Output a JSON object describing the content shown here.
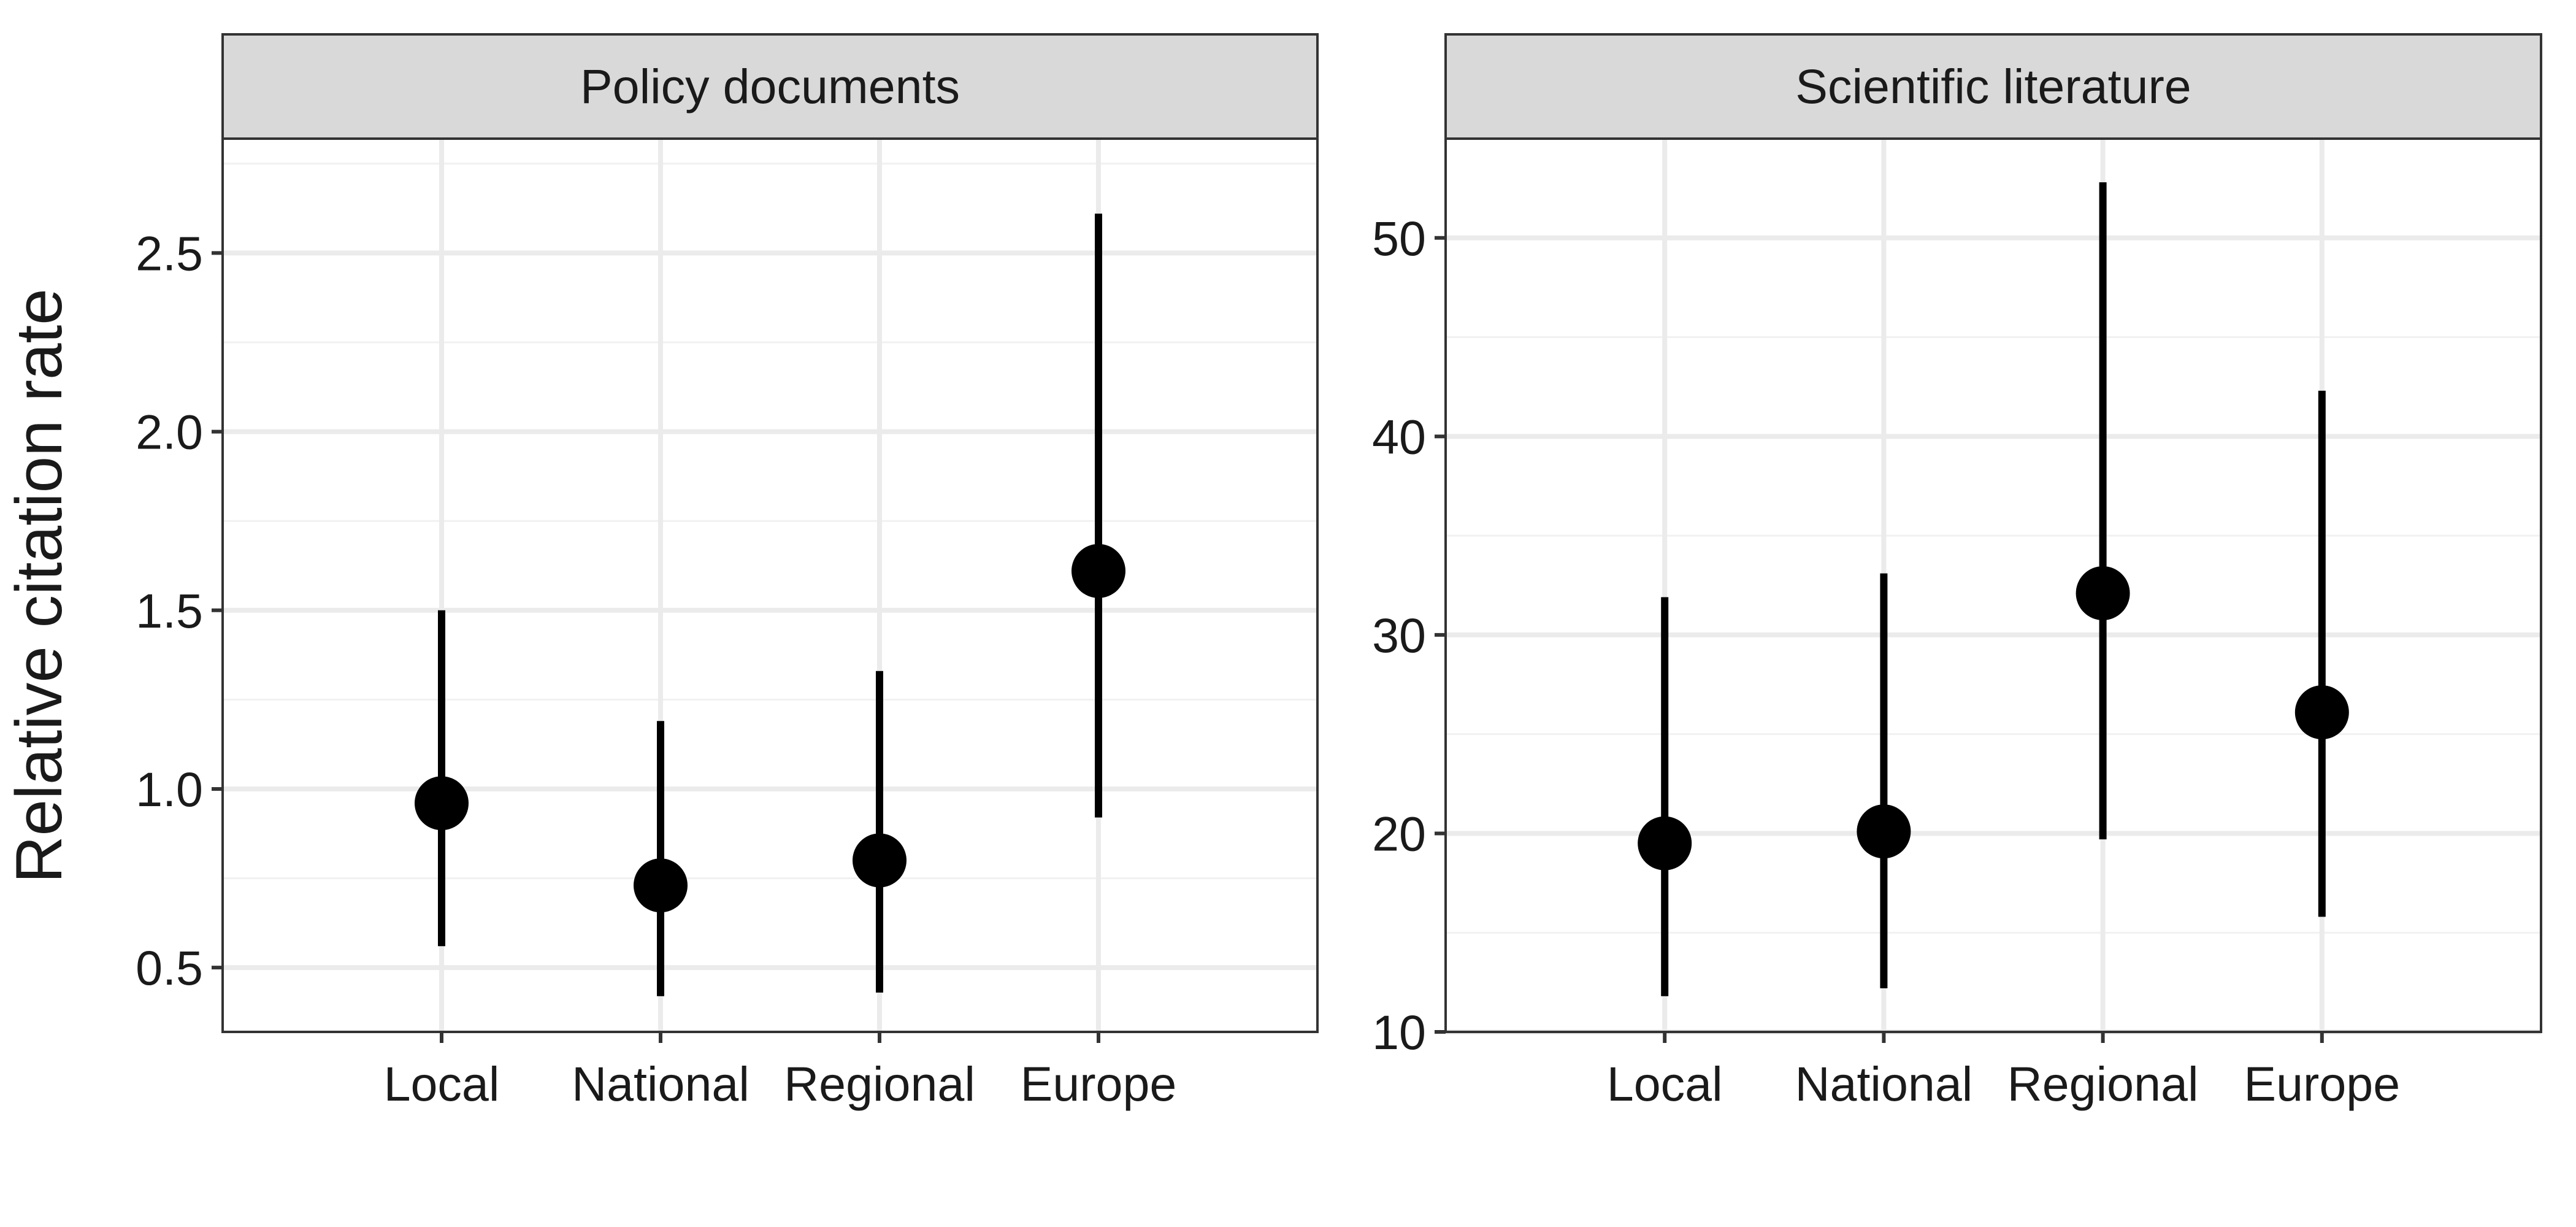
{
  "chart_data": {
    "type": "scatter",
    "ylabel": "Relative citation rate",
    "categories": [
      "Local",
      "National",
      "Regional",
      "Europe"
    ],
    "panels": [
      {
        "title": "Policy documents",
        "ylim": [
          0.32,
          2.82
        ],
        "yticks": [
          0.5,
          1.0,
          1.5,
          2.0,
          2.5
        ],
        "ytick_labels": [
          "0.5",
          "1.0",
          "1.5",
          "2.0",
          "2.5"
        ],
        "points": [
          {
            "category": "Local",
            "value": 0.96,
            "lower": 0.56,
            "upper": 1.5
          },
          {
            "category": "National",
            "value": 0.73,
            "lower": 0.42,
            "upper": 1.19
          },
          {
            "category": "Regional",
            "value": 0.8,
            "lower": 0.43,
            "upper": 1.33
          },
          {
            "category": "Europe",
            "value": 1.61,
            "lower": 0.92,
            "upper": 2.61
          }
        ]
      },
      {
        "title": "Scientific literature",
        "ylim": [
          10,
          55
        ],
        "yticks": [
          10,
          20,
          30,
          40,
          50
        ],
        "ytick_labels": [
          "10",
          "20",
          "30",
          "40",
          "50"
        ],
        "points": [
          {
            "category": "Local",
            "value": 19.5,
            "lower": 11.8,
            "upper": 31.9
          },
          {
            "category": "National",
            "value": 20.1,
            "lower": 12.2,
            "upper": 33.1
          },
          {
            "category": "Regional",
            "value": 32.1,
            "lower": 19.7,
            "upper": 52.8
          },
          {
            "category": "Europe",
            "value": 26.1,
            "lower": 15.8,
            "upper": 42.3
          }
        ]
      }
    ],
    "grid": true,
    "legend": "none"
  }
}
